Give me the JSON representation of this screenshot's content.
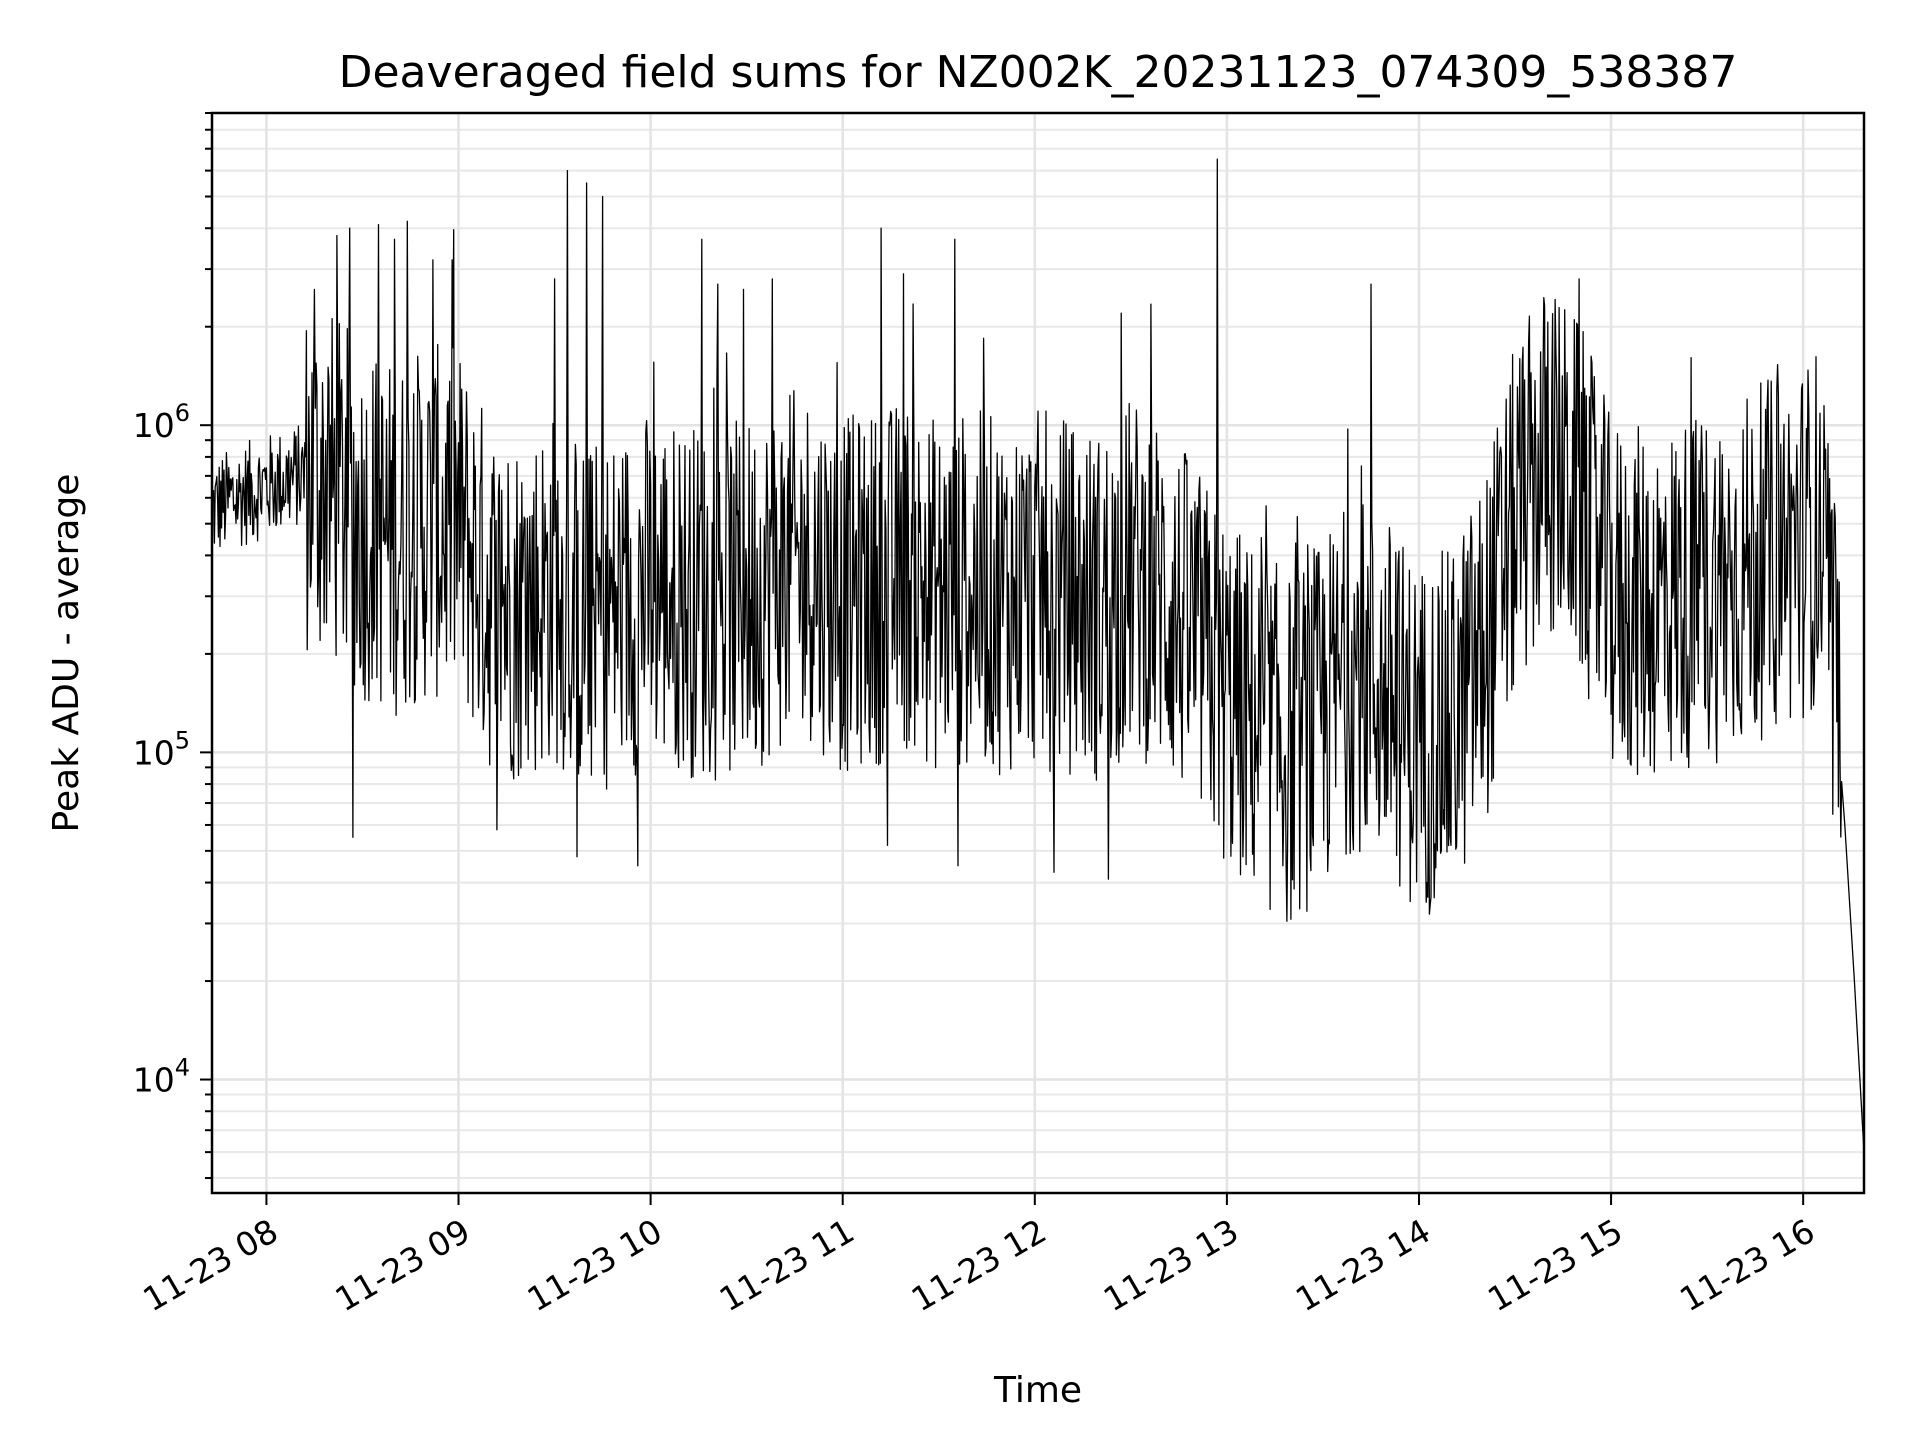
{
  "chart_data": {
    "type": "line",
    "title": "Deaveraged field sums for NZ002K_20231123_074309_538387",
    "xlabel": "Time",
    "ylabel": "Peak ADU - average",
    "yscale": "log",
    "grid": true,
    "legend": "none",
    "line_color": "#000000",
    "xlim": [
      "2023-11-23 07:43",
      "2023-11-23 16:19"
    ],
    "ylim": [
      4500,
      9000000
    ],
    "xticks": [
      {
        "t": "2023-11-23 08:00",
        "label": "11-23 08"
      },
      {
        "t": "2023-11-23 09:00",
        "label": "11-23 09"
      },
      {
        "t": "2023-11-23 10:00",
        "label": "11-23 10"
      },
      {
        "t": "2023-11-23 11:00",
        "label": "11-23 11"
      },
      {
        "t": "2023-11-23 12:00",
        "label": "11-23 12"
      },
      {
        "t": "2023-11-23 13:00",
        "label": "11-23 13"
      },
      {
        "t": "2023-11-23 14:00",
        "label": "11-23 14"
      },
      {
        "t": "2023-11-23 15:00",
        "label": "11-23 15"
      },
      {
        "t": "2023-11-23 16:00",
        "label": "11-23 16"
      }
    ],
    "yticks": [
      {
        "value": 10000,
        "base": "10",
        "exp": "4"
      },
      {
        "value": 100000,
        "base": "10",
        "exp": "5"
      },
      {
        "value": 1000000,
        "base": "10",
        "exp": "6"
      }
    ],
    "series": [
      {
        "x": [
          "2023-11-23 07:43",
          "2023-11-23 07:50",
          "2023-11-23 08:00",
          "2023-11-23 08:10",
          "2023-11-23 08:20",
          "2023-11-23 08:30",
          "2023-11-23 08:40",
          "2023-11-23 08:50",
          "2023-11-23 09:00",
          "2023-11-23 09:10",
          "2023-11-23 09:20",
          "2023-11-23 09:30",
          "2023-11-23 09:40",
          "2023-11-23 09:50",
          "2023-11-23 10:00",
          "2023-11-23 10:10",
          "2023-11-23 10:20",
          "2023-11-23 10:30",
          "2023-11-23 10:40",
          "2023-11-23 10:50",
          "2023-11-23 11:00",
          "2023-11-23 11:10",
          "2023-11-23 11:20",
          "2023-11-23 11:30",
          "2023-11-23 11:40",
          "2023-11-23 11:50",
          "2023-11-23 12:00",
          "2023-11-23 12:10",
          "2023-11-23 12:20",
          "2023-11-23 12:30",
          "2023-11-23 12:40",
          "2023-11-23 12:50",
          "2023-11-23 13:00",
          "2023-11-23 13:10",
          "2023-11-23 13:20",
          "2023-11-23 13:30",
          "2023-11-23 13:40",
          "2023-11-23 13:50",
          "2023-11-23 14:00",
          "2023-11-23 14:10",
          "2023-11-23 14:20",
          "2023-11-23 14:30",
          "2023-11-23 14:40",
          "2023-11-23 14:50",
          "2023-11-23 15:00",
          "2023-11-23 15:10",
          "2023-11-23 15:20",
          "2023-11-23 15:30",
          "2023-11-23 15:40",
          "2023-11-23 15:50",
          "2023-11-23 16:00",
          "2023-11-23 16:05",
          "2023-11-23 16:10",
          "2023-11-23 16:13",
          "2023-11-23 16:16",
          "2023-11-23 16:19"
        ],
        "y": [
          550000,
          600000,
          650000,
          700000,
          650000,
          500000,
          450000,
          500000,
          500000,
          300000,
          280000,
          320000,
          250000,
          280000,
          320000,
          300000,
          280000,
          300000,
          350000,
          380000,
          300000,
          320000,
          350000,
          300000,
          320000,
          300000,
          320000,
          300000,
          280000,
          350000,
          300000,
          220000,
          150000,
          120000,
          100000,
          130000,
          180000,
          150000,
          110000,
          120000,
          200000,
          500000,
          800000,
          600000,
          300000,
          280000,
          300000,
          320000,
          350000,
          400000,
          450000,
          500000,
          150000,
          60000,
          20000,
          6000
        ],
        "spikes": [
          {
            "x": "2023-11-23 08:15",
            "y": 2600000
          },
          {
            "x": "2023-11-23 08:22",
            "y": 3800000
          },
          {
            "x": "2023-11-23 08:26",
            "y": 4000000
          },
          {
            "x": "2023-11-23 08:35",
            "y": 4100000
          },
          {
            "x": "2023-11-23 08:40",
            "y": 3700000
          },
          {
            "x": "2023-11-23 08:44",
            "y": 4200000
          },
          {
            "x": "2023-11-23 08:52",
            "y": 3200000
          },
          {
            "x": "2023-11-23 08:58",
            "y": 3200000
          },
          {
            "x": "2023-11-23 09:30",
            "y": 2800000
          },
          {
            "x": "2023-11-23 09:34",
            "y": 6000000
          },
          {
            "x": "2023-11-23 09:40",
            "y": 5500000
          },
          {
            "x": "2023-11-23 09:45",
            "y": 5000000
          },
          {
            "x": "2023-11-23 10:16",
            "y": 3700000
          },
          {
            "x": "2023-11-23 10:21",
            "y": 2700000
          },
          {
            "x": "2023-11-23 10:29",
            "y": 2600000
          },
          {
            "x": "2023-11-23 10:38",
            "y": 2800000
          },
          {
            "x": "2023-11-23 11:12",
            "y": 4000000
          },
          {
            "x": "2023-11-23 11:19",
            "y": 2900000
          },
          {
            "x": "2023-11-23 11:35",
            "y": 3700000
          },
          {
            "x": "2023-11-23 12:27",
            "y": 2200000
          },
          {
            "x": "2023-11-23 12:57",
            "y": 6500000
          },
          {
            "x": "2023-11-23 13:45",
            "y": 2700000
          },
          {
            "x": "2023-11-23 14:50",
            "y": 2800000
          }
        ],
        "dips": [
          {
            "x": "2023-11-23 08:27",
            "y": 55000
          },
          {
            "x": "2023-11-23 09:12",
            "y": 58000
          },
          {
            "x": "2023-11-23 09:37",
            "y": 48000
          },
          {
            "x": "2023-11-23 09:56",
            "y": 45000
          },
          {
            "x": "2023-11-23 11:14",
            "y": 52000
          },
          {
            "x": "2023-11-23 11:36",
            "y": 45000
          },
          {
            "x": "2023-11-23 12:06",
            "y": 43000
          },
          {
            "x": "2023-11-23 12:23",
            "y": 41000
          },
          {
            "x": "2023-11-23 13:05",
            "y": 48000
          },
          {
            "x": "2023-11-23 14:10",
            "y": 52000
          }
        ]
      }
    ]
  }
}
